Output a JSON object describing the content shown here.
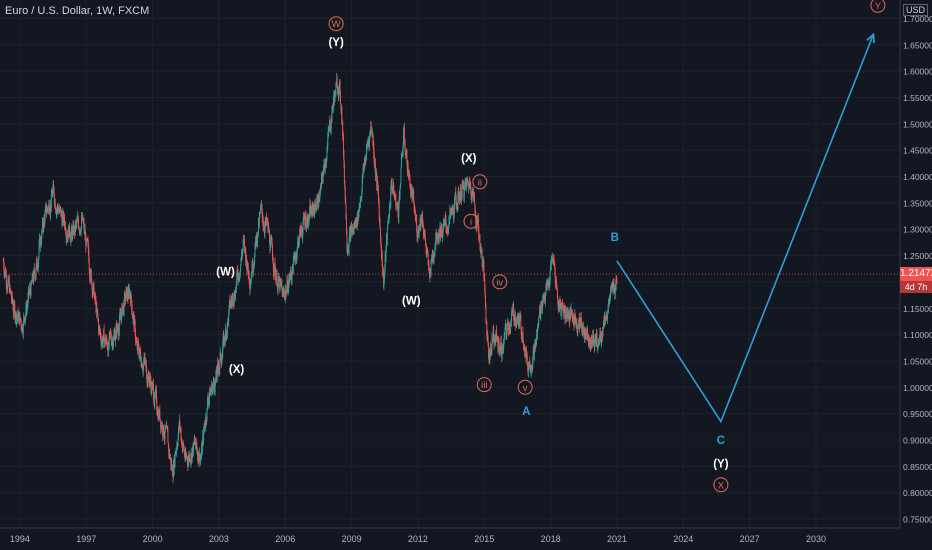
{
  "header": {
    "symbol_line": "Euro / U.S. Dollar, 1W, FXCM"
  },
  "price_scale": {
    "currency": "USD",
    "last_price": "1.21472",
    "countdown": "4d 7h"
  },
  "colors": {
    "background": "#131722",
    "up": "#26a69a",
    "down": "#ef5350",
    "wave": "#2e9fd6",
    "label_white": "#ffffff",
    "label_orange": "#e06c50",
    "last_line": "#ef5350"
  },
  "chart_data": {
    "type": "candlestick",
    "title": "Euro / U.S. Dollar, 1W, FXCM",
    "xlabel": "",
    "ylabel": "",
    "x_ticks": [
      "1994",
      "1997",
      "2000",
      "2003",
      "2006",
      "2009",
      "2012",
      "2015",
      "2018",
      "2021",
      "2024",
      "2027",
      "2030"
    ],
    "y_ticks": [
      "0.75000",
      "0.80000",
      "0.85000",
      "0.90000",
      "0.95000",
      "1.00000",
      "1.05000",
      "1.10000",
      "1.15000",
      "1.20000",
      "1.25000",
      "1.30000",
      "1.35000",
      "1.40000",
      "1.45000",
      "1.50000",
      "1.55000",
      "1.60000",
      "1.65000",
      "1.70000"
    ],
    "xlim": [
      1993.1,
      2033.8
    ],
    "ylim": [
      0.733,
      1.735
    ],
    "grid": true,
    "price_path": [
      [
        1993.25,
        1.24
      ],
      [
        1993.7,
        1.15
      ],
      [
        1994.1,
        1.12
      ],
      [
        1994.7,
        1.22
      ],
      [
        1995.1,
        1.32
      ],
      [
        1995.5,
        1.37
      ],
      [
        1995.9,
        1.32
      ],
      [
        1996.4,
        1.29
      ],
      [
        1996.8,
        1.32
      ],
      [
        1997.2,
        1.22
      ],
      [
        1997.6,
        1.1
      ],
      [
        1998.0,
        1.08
      ],
      [
        1998.4,
        1.11
      ],
      [
        1998.8,
        1.17
      ],
      [
        1999.0,
        1.18
      ],
      [
        1999.3,
        1.07
      ],
      [
        1999.6,
        1.05
      ],
      [
        1999.9,
        1.01
      ],
      [
        2000.3,
        0.95
      ],
      [
        2000.6,
        0.91
      ],
      [
        2000.9,
        0.84
      ],
      [
        2001.2,
        0.93
      ],
      [
        2001.5,
        0.86
      ],
      [
        2001.9,
        0.89
      ],
      [
        2002.2,
        0.87
      ],
      [
        2002.5,
        0.98
      ],
      [
        2002.9,
        1.02
      ],
      [
        2003.2,
        1.08
      ],
      [
        2003.5,
        1.15
      ],
      [
        2003.9,
        1.22
      ],
      [
        2004.1,
        1.27
      ],
      [
        2004.4,
        1.21
      ],
      [
        2004.9,
        1.33
      ],
      [
        2005.2,
        1.3
      ],
      [
        2005.6,
        1.21
      ],
      [
        2005.9,
        1.17
      ],
      [
        2006.3,
        1.22
      ],
      [
        2006.6,
        1.28
      ],
      [
        2006.9,
        1.32
      ],
      [
        2007.2,
        1.33
      ],
      [
        2007.6,
        1.37
      ],
      [
        2007.9,
        1.46
      ],
      [
        2008.2,
        1.55
      ],
      [
        2008.4,
        1.58
      ],
      [
        2008.55,
        1.53
      ],
      [
        2008.8,
        1.28
      ],
      [
        2009.1,
        1.3
      ],
      [
        2009.3,
        1.33
      ],
      [
        2009.6,
        1.43
      ],
      [
        2009.9,
        1.5
      ],
      [
        2010.2,
        1.36
      ],
      [
        2010.45,
        1.2
      ],
      [
        2010.8,
        1.39
      ],
      [
        2011.1,
        1.33
      ],
      [
        2011.35,
        1.48
      ],
      [
        2011.6,
        1.4
      ],
      [
        2011.95,
        1.3
      ],
      [
        2012.2,
        1.33
      ],
      [
        2012.5,
        1.21
      ],
      [
        2012.85,
        1.3
      ],
      [
        2013.2,
        1.3
      ],
      [
        2013.5,
        1.32
      ],
      [
        2013.9,
        1.37
      ],
      [
        2014.2,
        1.38
      ],
      [
        2014.4,
        1.39
      ],
      [
        2014.7,
        1.31
      ],
      [
        2014.95,
        1.23
      ],
      [
        2015.2,
        1.06
      ],
      [
        2015.4,
        1.1
      ],
      [
        2015.8,
        1.07
      ],
      [
        2016.1,
        1.12
      ],
      [
        2016.4,
        1.14
      ],
      [
        2016.8,
        1.1
      ],
      [
        2016.95,
        1.04
      ],
      [
        2017.3,
        1.07
      ],
      [
        2017.6,
        1.17
      ],
      [
        2017.9,
        1.19
      ],
      [
        2018.1,
        1.25
      ],
      [
        2018.35,
        1.16
      ],
      [
        2018.8,
        1.14
      ],
      [
        2019.3,
        1.12
      ],
      [
        2019.75,
        1.1
      ],
      [
        2020.15,
        1.08
      ],
      [
        2020.5,
        1.14
      ],
      [
        2020.8,
        1.18
      ],
      [
        2021.0,
        1.2147
      ]
    ],
    "projection": [
      [
        "2021.0",
        "1.24"
      ],
      [
        "2025.7",
        "0.935"
      ],
      [
        "2032.6",
        "1.67"
      ]
    ],
    "wave_labels": [
      {
        "text": "(W)",
        "x": 2003.3,
        "y": 1.22,
        "color": "white"
      },
      {
        "text": "(X)",
        "x": 2003.8,
        "y": 1.035,
        "color": "white"
      },
      {
        "text": "W",
        "x": 2008.3,
        "y": 1.69,
        "color": "orange",
        "circled": true
      },
      {
        "text": "(Y)",
        "x": 2008.3,
        "y": 1.655,
        "color": "white"
      },
      {
        "text": "(W)",
        "x": 2011.7,
        "y": 1.165,
        "color": "white"
      },
      {
        "text": "(X)",
        "x": 2014.3,
        "y": 1.435,
        "color": "white"
      },
      {
        "text": "ii",
        "x": 2014.8,
        "y": 1.39,
        "color": "orange",
        "circled": true
      },
      {
        "text": "i",
        "x": 2014.4,
        "y": 1.315,
        "color": "orange",
        "circled": true
      },
      {
        "text": "iv",
        "x": 2015.7,
        "y": 1.2,
        "color": "orange",
        "circled": true
      },
      {
        "text": "iii",
        "x": 2015.0,
        "y": 1.005,
        "color": "orange",
        "circled": true
      },
      {
        "text": "v",
        "x": 2016.85,
        "y": 1.0,
        "color": "orange",
        "circled": true
      },
      {
        "text": "A",
        "x": 2016.9,
        "y": 0.955,
        "color": "blue"
      },
      {
        "text": "B",
        "x": 2020.9,
        "y": 1.285,
        "color": "blue"
      },
      {
        "text": "C",
        "x": 2025.7,
        "y": 0.9,
        "color": "blue"
      },
      {
        "text": "(Y)",
        "x": 2025.7,
        "y": 0.855,
        "color": "white"
      },
      {
        "text": "X",
        "x": 2025.7,
        "y": 0.815,
        "color": "orange",
        "circled": true
      },
      {
        "text": "Y",
        "x": 2032.8,
        "y": 1.725,
        "color": "orange",
        "circled": true
      }
    ]
  }
}
